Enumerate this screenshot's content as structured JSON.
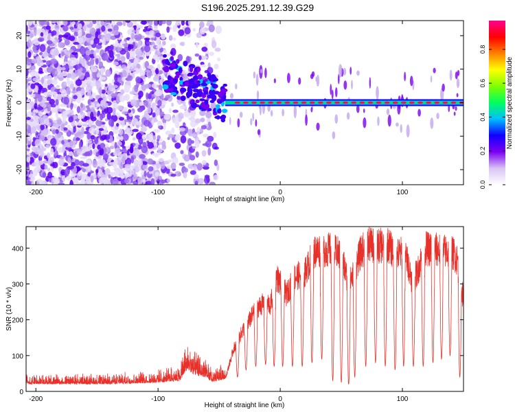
{
  "figure": {
    "title": "S196.2025.291.12.39.G29"
  },
  "chart_data": [
    {
      "type": "heatmap",
      "name": "spectrogram",
      "xlabel": "Height of straight line (km)",
      "ylabel": "Frequency (Hz)",
      "xlim": [
        -208,
        150
      ],
      "ylim": [
        -24.5,
        24.5
      ],
      "xticks": [
        -200,
        -100,
        0,
        100
      ],
      "yticks": [
        -20,
        -10,
        0,
        10,
        20
      ],
      "colorbar": {
        "label": "Normalized spectral amplitude",
        "range": [
          0,
          0.97
        ],
        "ticks": [
          0.0,
          0.2,
          0.4,
          0.6,
          0.8
        ],
        "colormap": [
          "#ffffff",
          "#d8c4f4",
          "#7b00f0",
          "#1000ff",
          "#00bfff",
          "#00ff60",
          "#7fff00",
          "#ffff00",
          "#ff8000",
          "#ff0000",
          "#ff0090"
        ]
      },
      "features": {
        "noise_region_x": [
          -208,
          -50
        ],
        "noise_dense_x": [
          -208,
          -95
        ],
        "transition_x": [
          -95,
          -45
        ],
        "tone_x": [
          -45,
          150
        ],
        "tone_frequency_hz": 0,
        "tone_peak_amplitude": 0.9
      }
    },
    {
      "type": "line",
      "name": "snr",
      "xlabel": "Height of straight line (km)",
      "ylabel": "SNR (10 * v/v)",
      "xlim": [
        -208,
        150
      ],
      "ylim": [
        0,
        460
      ],
      "xticks": [
        -200,
        -100,
        0,
        100
      ],
      "yticks": [
        0,
        100,
        200,
        300,
        400
      ],
      "color": "#e8312a",
      "envelope_x": [
        -208,
        -140,
        -100,
        -82,
        -76,
        -70,
        -62,
        -55,
        -45,
        -38,
        -30,
        -25,
        -20,
        -12,
        -8,
        -3,
        5,
        12,
        20,
        28,
        35,
        42,
        50,
        56,
        60,
        66,
        72,
        80,
        88,
        95,
        102,
        108,
        112,
        118,
        124,
        130,
        136,
        142,
        146,
        150
      ],
      "envelope_y": [
        20,
        20,
        24,
        30,
        60,
        45,
        40,
        25,
        35,
        120,
        175,
        200,
        230,
        250,
        240,
        320,
        270,
        320,
        330,
        390,
        395,
        395,
        380,
        300,
        330,
        390,
        410,
        405,
        410,
        380,
        390,
        310,
        330,
        400,
        395,
        395,
        390,
        385,
        360,
        250
      ],
      "dip_centers_x": [
        -35,
        -28,
        -20,
        -12,
        -5,
        2,
        10,
        18,
        26,
        34,
        43,
        50,
        56,
        61,
        70,
        78,
        86,
        94,
        101,
        109,
        117,
        125,
        132,
        139,
        147
      ],
      "dip_floor_y": [
        40,
        60,
        70,
        75,
        70,
        70,
        70,
        70,
        80,
        90,
        30,
        25,
        20,
        40,
        70,
        80,
        70,
        60,
        70,
        70,
        70,
        80,
        90,
        100,
        40
      ]
    }
  ]
}
